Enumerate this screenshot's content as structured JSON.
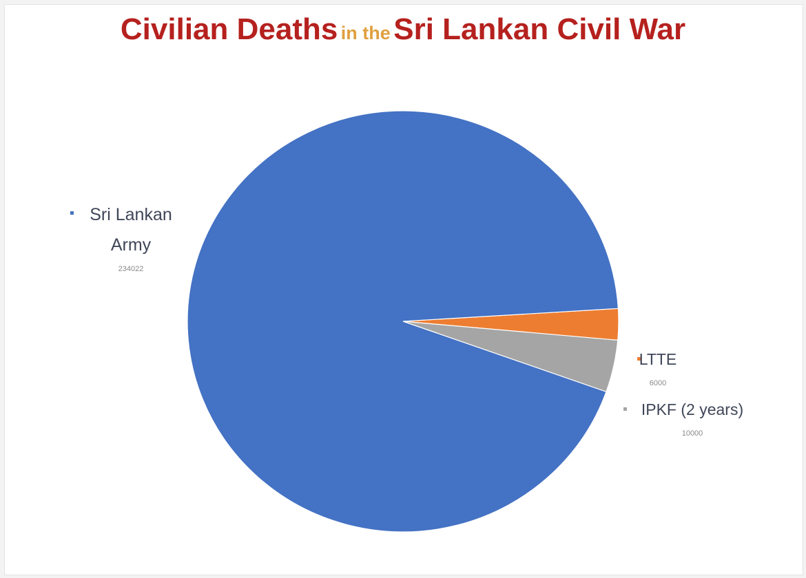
{
  "title": {
    "part1": "Civilian Deaths",
    "part2": "in the",
    "part3": "Sri Lankan Civil War"
  },
  "colors": {
    "title_main": "#b5211e",
    "title_minor": "#e0a040",
    "label_text": "#3f4658",
    "value_text": "#8a8a8a"
  },
  "chart_data": {
    "type": "pie",
    "title": "Civilian Deaths in the Sri Lankan Civil War",
    "slices": [
      {
        "label": "Sri Lankan Army",
        "lines": [
          "Sri Lankan",
          "Army"
        ],
        "value": 234022,
        "value_label": "234022",
        "color": "#4472c4"
      },
      {
        "label": "LTTE",
        "lines": [
          "LTTE"
        ],
        "value": 6000,
        "value_label": "6000",
        "color": "#ed7d31"
      },
      {
        "label": "IPKF (2 years)",
        "lines": [
          "IPKF (2 years)"
        ],
        "value": 10000,
        "value_label": "10000",
        "color": "#a5a5a5"
      }
    ]
  }
}
